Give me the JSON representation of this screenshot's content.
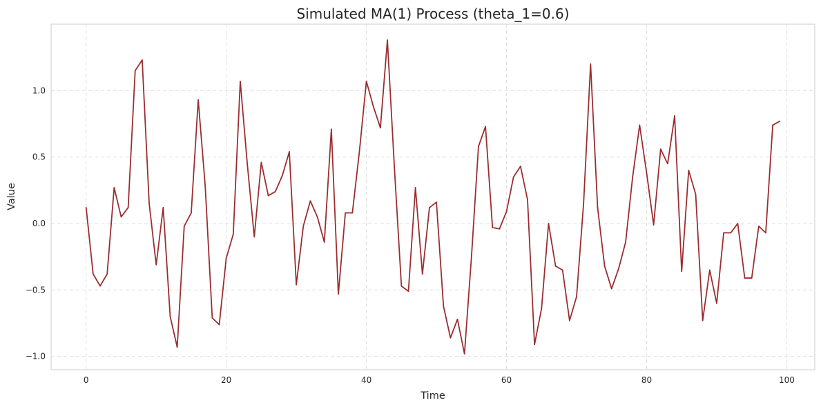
{
  "chart_data": {
    "type": "line",
    "title": "Simulated MA(1) Process (theta_1=0.6)",
    "xlabel": "Time",
    "ylabel": "Value",
    "xlim": [
      -5,
      104
    ],
    "ylim": [
      -1.1,
      1.5
    ],
    "xticks": [
      0,
      20,
      40,
      60,
      80,
      100
    ],
    "xtick_labels": [
      "0",
      "20",
      "40",
      "60",
      "80",
      "100"
    ],
    "yticks": [
      -1.0,
      -0.5,
      0.0,
      0.5,
      1.0
    ],
    "ytick_labels": [
      "−1.0",
      "−0.5",
      "0.0",
      "0.5",
      "1.0"
    ],
    "grid": true,
    "series": [
      {
        "color": "#9b2d30",
        "x": [
          0,
          1,
          2,
          3,
          4,
          5,
          6,
          7,
          8,
          9,
          10,
          11,
          12,
          13,
          14,
          15,
          16,
          17,
          18,
          19,
          20,
          21,
          22,
          23,
          24,
          25,
          26,
          27,
          28,
          29,
          30,
          31,
          32,
          33,
          34,
          35,
          36,
          37,
          38,
          39,
          40,
          41,
          42,
          43,
          44,
          45,
          46,
          47,
          48,
          49,
          50,
          51,
          52,
          53,
          54,
          55,
          56,
          57,
          58,
          59,
          60,
          61,
          62,
          63,
          64,
          65,
          66,
          67,
          68,
          69,
          70,
          71,
          72,
          73,
          74,
          75,
          76,
          77,
          78,
          79,
          80,
          81,
          82,
          83,
          84,
          85,
          86,
          87,
          88,
          89,
          90,
          91,
          92,
          93,
          94,
          95,
          96,
          97,
          98,
          99
        ],
        "values": [
          0.12,
          -0.38,
          -0.47,
          -0.38,
          0.27,
          0.05,
          0.12,
          1.15,
          1.23,
          0.15,
          -0.31,
          0.12,
          -0.7,
          -0.93,
          -0.02,
          0.08,
          0.93,
          0.28,
          -0.71,
          -0.76,
          -0.26,
          -0.08,
          1.07,
          0.45,
          -0.1,
          0.46,
          0.21,
          0.24,
          0.36,
          0.54,
          -0.46,
          -0.02,
          0.17,
          0.05,
          -0.14,
          0.71,
          -0.53,
          0.08,
          0.08,
          0.54,
          1.07,
          0.88,
          0.72,
          1.38,
          0.42,
          -0.47,
          -0.51,
          0.27,
          -0.38,
          0.12,
          0.16,
          -0.62,
          -0.86,
          -0.72,
          -0.98,
          -0.25,
          0.58,
          0.73,
          -0.03,
          -0.04,
          0.09,
          0.35,
          0.43,
          0.18,
          -0.91,
          -0.64,
          0.0,
          -0.32,
          -0.35,
          -0.73,
          -0.55,
          0.15,
          1.2,
          0.12,
          -0.32,
          -0.49,
          -0.34,
          -0.14,
          0.35,
          0.74,
          0.38,
          -0.01,
          0.56,
          0.45,
          0.81,
          -0.36,
          0.4,
          0.22,
          -0.73,
          -0.35,
          -0.6,
          -0.07,
          -0.07,
          0.0,
          -0.41,
          -0.41,
          -0.02,
          -0.07,
          0.74,
          0.77
        ]
      }
    ]
  }
}
